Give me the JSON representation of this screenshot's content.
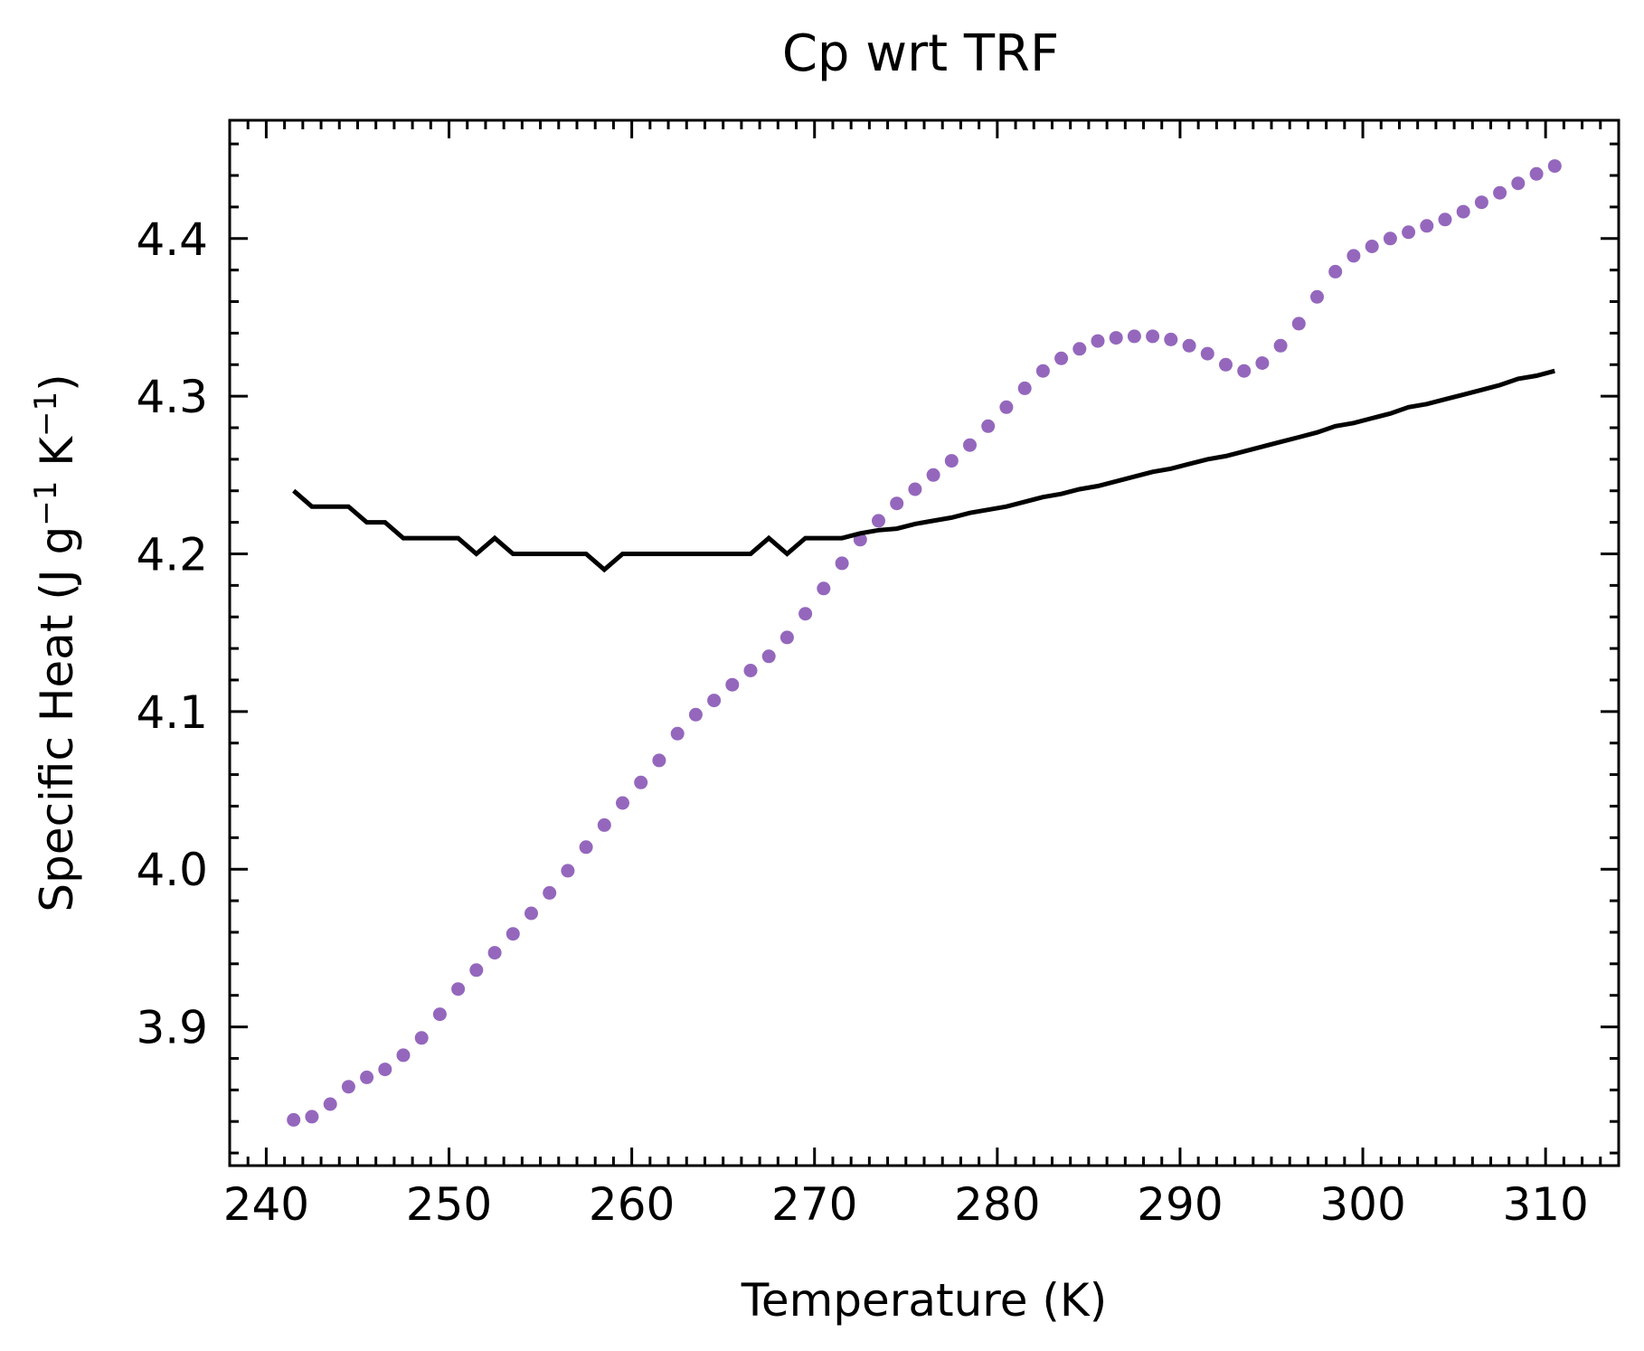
{
  "chart_data": {
    "type": "scatter",
    "title": "Cp wrt TRF",
    "xlabel": "Temperature (K)",
    "ylabel": {
      "base": "Specific Heat (J g",
      "sup1": "−1",
      "mid": " K",
      "sup2": "−1",
      "end": ")"
    },
    "xlim": [
      238,
      314
    ],
    "ylim": [
      3.812,
      4.475
    ],
    "xticks": [
      240,
      250,
      260,
      270,
      280,
      290,
      300,
      310
    ],
    "xtick_labels": [
      "240",
      "250",
      "260",
      "270",
      "280",
      "290",
      "300",
      "310"
    ],
    "yticks": [
      3.9,
      4.0,
      4.1,
      4.2,
      4.3,
      4.4
    ],
    "ytick_labels": [
      "3.9",
      "4.0",
      "4.1",
      "4.2",
      "4.3",
      "4.4"
    ],
    "x_minor_step": 1,
    "y_minor_step": 0.02,
    "grid": false,
    "series": [
      {
        "style": "scatter",
        "color": "#9467bd",
        "x": [
          241.5,
          242.5,
          243.5,
          244.5,
          245.5,
          246.5,
          247.5,
          248.5,
          249.5,
          250.5,
          251.5,
          252.5,
          253.5,
          254.5,
          255.5,
          256.5,
          257.5,
          258.5,
          259.5,
          260.5,
          261.5,
          262.5,
          263.5,
          264.5,
          265.5,
          266.5,
          267.5,
          268.5,
          269.5,
          270.5,
          271.5,
          272.5,
          273.5,
          274.5,
          275.5,
          276.5,
          277.5,
          278.5,
          279.5,
          280.5,
          281.5,
          282.5,
          283.5,
          284.5,
          285.5,
          286.5,
          287.5,
          288.5,
          289.5,
          290.5,
          291.5,
          292.5,
          293.5,
          294.5,
          295.5,
          296.5,
          297.5,
          298.5,
          299.5,
          300.5,
          301.5,
          302.5,
          303.5,
          304.5,
          305.5,
          306.5,
          307.5,
          308.5,
          309.5,
          310.5
        ],
        "y": [
          3.841,
          3.843,
          3.851,
          3.862,
          3.868,
          3.873,
          3.882,
          3.893,
          3.908,
          3.924,
          3.936,
          3.947,
          3.959,
          3.972,
          3.985,
          3.999,
          4.014,
          4.028,
          4.042,
          4.055,
          4.069,
          4.086,
          4.098,
          4.107,
          4.117,
          4.126,
          4.135,
          4.147,
          4.162,
          4.178,
          4.194,
          4.209,
          4.221,
          4.232,
          4.241,
          4.25,
          4.259,
          4.269,
          4.281,
          4.293,
          4.305,
          4.316,
          4.324,
          4.33,
          4.335,
          4.337,
          4.338,
          4.338,
          4.336,
          4.332,
          4.327,
          4.32,
          4.316,
          4.321,
          4.332,
          4.346,
          4.363,
          4.379,
          4.389,
          4.395,
          4.4,
          4.404,
          4.408,
          4.412,
          4.417,
          4.423,
          4.429,
          4.435,
          4.441,
          4.446
        ]
      },
      {
        "style": "line",
        "color": "#000000",
        "x": [
          241.5,
          242.5,
          243.5,
          244.5,
          245.5,
          246.5,
          247.5,
          248.5,
          249.5,
          250.5,
          251.5,
          252.5,
          253.5,
          254.5,
          255.5,
          256.5,
          257.5,
          258.5,
          259.5,
          260.5,
          261.5,
          262.5,
          263.5,
          264.5,
          265.5,
          266.5,
          267.5,
          268.5,
          269.5,
          270.5,
          271.5,
          272.5,
          273.5,
          274.5,
          275.5,
          276.5,
          277.5,
          278.5,
          279.5,
          280.5,
          281.5,
          282.5,
          283.5,
          284.5,
          285.5,
          286.5,
          287.5,
          288.5,
          289.5,
          290.5,
          291.5,
          292.5,
          293.5,
          294.5,
          295.5,
          296.5,
          297.5,
          298.5,
          299.5,
          300.5,
          301.5,
          302.5,
          303.5,
          304.5,
          305.5,
          306.5,
          307.5,
          308.5,
          309.5,
          310.5
        ],
        "y": [
          4.24,
          4.23,
          4.23,
          4.23,
          4.22,
          4.22,
          4.21,
          4.21,
          4.21,
          4.21,
          4.2,
          4.21,
          4.2,
          4.2,
          4.2,
          4.2,
          4.2,
          4.19,
          4.2,
          4.2,
          4.2,
          4.2,
          4.2,
          4.2,
          4.2,
          4.2,
          4.21,
          4.2,
          4.21,
          4.21,
          4.21,
          4.213,
          4.215,
          4.216,
          4.219,
          4.221,
          4.223,
          4.226,
          4.228,
          4.23,
          4.233,
          4.236,
          4.238,
          4.241,
          4.243,
          4.246,
          4.249,
          4.252,
          4.254,
          4.257,
          4.26,
          4.262,
          4.265,
          4.268,
          4.271,
          4.274,
          4.277,
          4.281,
          4.283,
          4.286,
          4.289,
          4.293,
          4.295,
          4.298,
          4.301,
          4.304,
          4.307,
          4.311,
          4.313,
          4.316
        ]
      }
    ]
  }
}
